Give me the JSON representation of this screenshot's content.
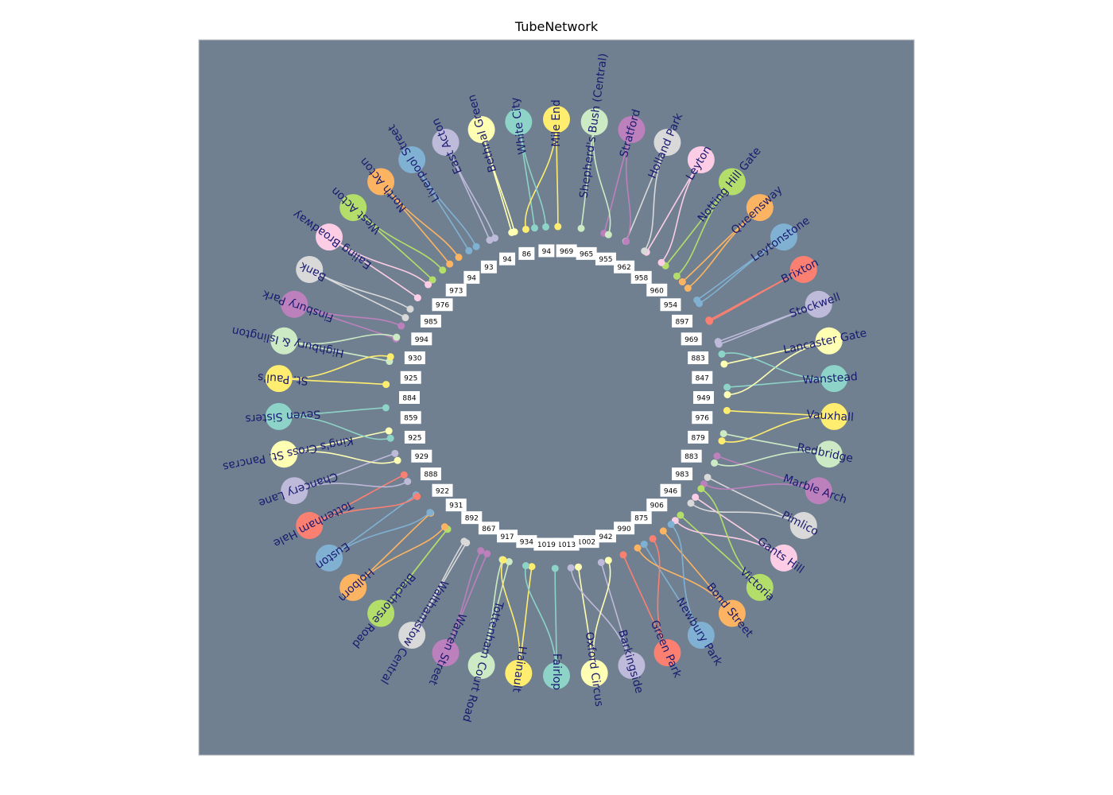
{
  "title": "TubeNetwork",
  "colors": {
    "background": "#ffffff",
    "plot_area": "#708090",
    "plot_border": "#c8c8c8",
    "label_text": "#191970",
    "edge_label_box": "#ffffff"
  },
  "palette": [
    "#8dd3c7",
    "#ffffb3",
    "#bebada",
    "#fb8072",
    "#80b1d3",
    "#fdb462",
    "#b3de69",
    "#fccde5",
    "#d9d9d9",
    "#bc80bd",
    "#ccebc5",
    "#ffed6f"
  ],
  "nodes": [
    {
      "name": "Mile End",
      "color": "#ffed6f"
    },
    {
      "name": "Shepherd's Bush (Central)",
      "color": "#ccebc5"
    },
    {
      "name": "Stratford",
      "color": "#bc80bd"
    },
    {
      "name": "Holland Park",
      "color": "#d9d9d9"
    },
    {
      "name": "Leyton",
      "color": "#fccde5"
    },
    {
      "name": "Notting Hill Gate",
      "color": "#b3de69"
    },
    {
      "name": "Queensway",
      "color": "#fdb462"
    },
    {
      "name": "Leytonstone",
      "color": "#80b1d3"
    },
    {
      "name": "Brixton",
      "color": "#fb8072"
    },
    {
      "name": "Stockwell",
      "color": "#bebada"
    },
    {
      "name": "Lancaster Gate",
      "color": "#ffffb3"
    },
    {
      "name": "Wanstead",
      "color": "#8dd3c7"
    },
    {
      "name": "Vauxhall",
      "color": "#ffed6f"
    },
    {
      "name": "Redbridge",
      "color": "#ccebc5"
    },
    {
      "name": "Marble Arch",
      "color": "#bc80bd"
    },
    {
      "name": "Pimlico",
      "color": "#d9d9d9"
    },
    {
      "name": "Gants Hill",
      "color": "#fccde5"
    },
    {
      "name": "Victoria",
      "color": "#b3de69"
    },
    {
      "name": "Bond Street",
      "color": "#fdb462"
    },
    {
      "name": "Newbury Park",
      "color": "#80b1d3"
    },
    {
      "name": "Green Park",
      "color": "#fb8072"
    },
    {
      "name": "Barkingside",
      "color": "#bebada"
    },
    {
      "name": "Oxford Circus",
      "color": "#ffffb3"
    },
    {
      "name": "Fairlop",
      "color": "#8dd3c7"
    },
    {
      "name": "Hainault",
      "color": "#ffed6f"
    },
    {
      "name": "Tottenham Court Road",
      "color": "#ccebc5"
    },
    {
      "name": "Warren Street",
      "color": "#bc80bd"
    },
    {
      "name": "Walthamstow Central",
      "color": "#d9d9d9"
    },
    {
      "name": "Blackhorse Road",
      "color": "#b3de69"
    },
    {
      "name": "Holborn",
      "color": "#fdb462"
    },
    {
      "name": "Euston",
      "color": "#80b1d3"
    },
    {
      "name": "Tottenham Hale",
      "color": "#fb8072"
    },
    {
      "name": "Chancery Lane",
      "color": "#bebada"
    },
    {
      "name": "King's Cross St. Pancras",
      "color": "#ffffb3"
    },
    {
      "name": "Seven Sisters",
      "color": "#8dd3c7"
    },
    {
      "name": "St. Paul's",
      "color": "#ffed6f"
    },
    {
      "name": "Highbury & Islington",
      "color": "#ccebc5"
    },
    {
      "name": "Finsbury Park",
      "color": "#bc80bd"
    },
    {
      "name": "Bank",
      "color": "#d9d9d9"
    },
    {
      "name": "Ealing Broadway",
      "color": "#fccde5"
    },
    {
      "name": "West Acton",
      "color": "#b3de69"
    },
    {
      "name": "North Acton",
      "color": "#fdb462"
    },
    {
      "name": "Liverpool Street",
      "color": "#80b1d3"
    },
    {
      "name": "East Acton",
      "color": "#bebada"
    },
    {
      "name": "Bethnal Green",
      "color": "#ffffb3"
    },
    {
      "name": "White City",
      "color": "#8dd3c7"
    }
  ],
  "edges": [
    {
      "a": 0,
      "b": 1,
      "label": "969"
    },
    {
      "a": 1,
      "b": 2,
      "label": "965"
    },
    {
      "a": 2,
      "b": 3,
      "label": "955"
    },
    {
      "a": 3,
      "b": 4,
      "label": "962"
    },
    {
      "a": 4,
      "b": 5,
      "label": "958"
    },
    {
      "a": 5,
      "b": 6,
      "label": "960"
    },
    {
      "a": 6,
      "b": 7,
      "label": "954"
    },
    {
      "a": 7,
      "b": 8,
      "label": "897"
    },
    {
      "a": 8,
      "b": 9,
      "label": "969"
    },
    {
      "a": 9,
      "b": 10,
      "label": "883"
    },
    {
      "a": 10,
      "b": 11,
      "label": "847"
    },
    {
      "a": 11,
      "b": 12,
      "label": "949"
    },
    {
      "a": 12,
      "b": 13,
      "label": "976"
    },
    {
      "a": 13,
      "b": 14,
      "label": "879"
    },
    {
      "a": 14,
      "b": 15,
      "label": "883"
    },
    {
      "a": 15,
      "b": 16,
      "label": "983"
    },
    {
      "a": 16,
      "b": 17,
      "label": "946"
    },
    {
      "a": 17,
      "b": 18,
      "label": "906"
    },
    {
      "a": 18,
      "b": 19,
      "label": "875"
    },
    {
      "a": 19,
      "b": 20,
      "label": "990"
    },
    {
      "a": 20,
      "b": 21,
      "label": "942"
    },
    {
      "a": 21,
      "b": 22,
      "label": "1002"
    },
    {
      "a": 22,
      "b": 23,
      "label": "1013"
    },
    {
      "a": 23,
      "b": 24,
      "label": "1019"
    },
    {
      "a": 24,
      "b": 25,
      "label": "934"
    },
    {
      "a": 25,
      "b": 26,
      "label": "917"
    },
    {
      "a": 26,
      "b": 27,
      "label": "867"
    },
    {
      "a": 27,
      "b": 28,
      "label": "892"
    },
    {
      "a": 28,
      "b": 29,
      "label": "931"
    },
    {
      "a": 29,
      "b": 30,
      "label": "922"
    },
    {
      "a": 30,
      "b": 31,
      "label": "888"
    },
    {
      "a": 31,
      "b": 32,
      "label": "929"
    },
    {
      "a": 32,
      "b": 33,
      "label": "925"
    },
    {
      "a": 33,
      "b": 34,
      "label": "859"
    },
    {
      "a": 34,
      "b": 35,
      "label": "884"
    },
    {
      "a": 35,
      "b": 36,
      "label": "925"
    },
    {
      "a": 36,
      "b": 37,
      "label": "930"
    },
    {
      "a": 37,
      "b": 38,
      "label": "994"
    },
    {
      "a": 38,
      "b": 39,
      "label": "985"
    },
    {
      "a": 39,
      "b": 40,
      "label": "976"
    },
    {
      "a": 40,
      "b": 41,
      "label": "973"
    },
    {
      "a": 41,
      "b": 42,
      "label": "94"
    },
    {
      "a": 42,
      "b": 43,
      "label": "93"
    },
    {
      "a": 43,
      "b": 44,
      "label": "94"
    },
    {
      "a": 44,
      "b": 45,
      "label": "86"
    },
    {
      "a": 45,
      "b": 0,
      "label": "94"
    },
    {
      "a": 0,
      "b": 24,
      "label": "1019"
    },
    {
      "a": 1,
      "b": 22,
      "label": "1013"
    },
    {
      "a": 2,
      "b": 20,
      "label": "942"
    },
    {
      "a": 3,
      "b": 19,
      "label": "990"
    },
    {
      "a": 4,
      "b": 18,
      "label": "875"
    },
    {
      "a": 5,
      "b": 17,
      "label": "906"
    },
    {
      "a": 6,
      "b": 13,
      "label": "879"
    },
    {
      "a": 7,
      "b": 11,
      "label": "949"
    },
    {
      "a": 8,
      "b": 10,
      "label": "847"
    },
    {
      "a": 9,
      "b": 12,
      "label": "976"
    },
    {
      "a": 10,
      "b": 33,
      "label": "888"
    },
    {
      "a": 11,
      "b": 34,
      "label": "859"
    },
    {
      "a": 12,
      "b": 35,
      "label": "884"
    },
    {
      "a": 13,
      "b": 36,
      "label": "925"
    },
    {
      "a": 14,
      "b": 37,
      "label": "930"
    },
    {
      "a": 15,
      "b": 38,
      "label": "994"
    },
    {
      "a": 16,
      "b": 39,
      "label": "985"
    },
    {
      "a": 17,
      "b": 40,
      "label": "976"
    },
    {
      "a": 18,
      "b": 41,
      "label": "973"
    },
    {
      "a": 19,
      "b": 42,
      "label": "94"
    },
    {
      "a": 20,
      "b": 43,
      "label": "93"
    },
    {
      "a": 21,
      "b": 44,
      "label": "94"
    },
    {
      "a": 23,
      "b": 45,
      "label": "86"
    },
    {
      "a": 25,
      "b": 31,
      "label": "929"
    },
    {
      "a": 26,
      "b": 32,
      "label": "925"
    },
    {
      "a": 27,
      "b": 30,
      "label": "922"
    },
    {
      "a": 28,
      "b": 29,
      "label": "931"
    },
    {
      "a": 24,
      "b": 0,
      "label": "1019"
    },
    {
      "a": 22,
      "b": 1,
      "label": "1013"
    },
    {
      "a": 35,
      "b": 10,
      "label": "884"
    },
    {
      "a": 33,
      "b": 12,
      "label": "888"
    },
    {
      "a": 38,
      "b": 0,
      "label": "994"
    },
    {
      "a": 37,
      "b": 2,
      "label": "930"
    },
    {
      "a": 29,
      "b": 16,
      "label": "867"
    },
    {
      "a": 30,
      "b": 15,
      "label": "892"
    },
    {
      "a": 31,
      "b": 14,
      "label": "917"
    },
    {
      "a": 32,
      "b": 11,
      "label": "934"
    },
    {
      "a": 34,
      "b": 13,
      "label": "925"
    },
    {
      "a": 36,
      "b": 9,
      "label": "897"
    },
    {
      "a": 39,
      "b": 6,
      "label": "960"
    },
    {
      "a": 40,
      "b": 5,
      "label": "958"
    },
    {
      "a": 41,
      "b": 4,
      "label": "962"
    },
    {
      "a": 42,
      "b": 3,
      "label": "955"
    },
    {
      "a": 43,
      "b": 2,
      "label": "965"
    },
    {
      "a": 44,
      "b": 1,
      "label": "969"
    },
    {
      "a": 45,
      "b": 8,
      "label": "954"
    }
  ]
}
